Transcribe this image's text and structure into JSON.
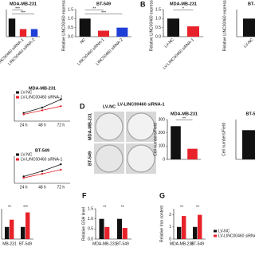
{
  "chart_data": [
    {
      "type": "bar",
      "title": "MDA-MB-231",
      "categories": [
        null,
        "LINC00460 siRNA-1",
        "LINC00460 siRNA-2"
      ],
      "values": [
        1,
        0.42,
        0.42
      ],
      "colors": [
        "#111111",
        "#e8222a",
        "#1f3fd6"
      ],
      "annotations": [
        "***",
        "***"
      ],
      "ylim": [
        0,
        1.5
      ]
    },
    {
      "type": "bar",
      "title": "BT-549",
      "ylabel": "Relative LINC00460 expression",
      "categories": [
        "NC",
        "LINC00460 siRNA-1",
        "LINC00460 siRNA-2"
      ],
      "values": [
        1,
        0.33,
        0.5
      ],
      "colors": [
        "#111111",
        "#e8222a",
        "#1f3fd6"
      ],
      "annotations": [
        "**",
        "***"
      ],
      "ylim": [
        0,
        1.5
      ],
      "yticks": [
        {
          "value": 0,
          "label": "0.0"
        },
        {
          "value": 0.5,
          "label": "0.5"
        },
        {
          "value": 1,
          "label": "1.0"
        },
        {
          "value": 1.5,
          "label": "1.5"
        }
      ]
    },
    {
      "type": "bar",
      "panel": "B",
      "title": "MDA-MB-231",
      "ylabel": "Relative LINC00460 expression",
      "categories": [
        "LV-NC",
        "LV-LINC00460 siRNA-1"
      ],
      "values": [
        1,
        0.57
      ],
      "colors": [
        "#111111",
        "#e8222a"
      ],
      "annotations": [
        "*"
      ],
      "ylim": [
        0,
        1.5
      ],
      "yticks": [
        {
          "value": 0,
          "label": "0.0"
        },
        {
          "value": 0.5,
          "label": "0.5"
        },
        {
          "value": 1,
          "label": "1.0"
        },
        {
          "value": 1.5,
          "label": "1.5"
        }
      ]
    },
    {
      "type": "bar",
      "title": "BT-5",
      "ylabel": "Relative LINC00460 expression",
      "categories": [
        "LV-NC"
      ],
      "values": [
        1
      ],
      "colors": [
        "#111111"
      ],
      "ylim": [
        0,
        1.5
      ]
    },
    {
      "type": "line",
      "title": "MDA-MB-231",
      "categories": [
        "24 h",
        "48 h",
        "72 h"
      ],
      "series": [
        {
          "name": "LV-NC",
          "color": "#111111",
          "values": [
            0.6,
            1.0,
            1.6
          ]
        },
        {
          "name": "LV-LINC00460 siRNA-1",
          "color": "#e8222a",
          "values": [
            0.5,
            0.8,
            1.1
          ]
        }
      ],
      "legend": "upper left",
      "ylim": [
        0,
        2
      ]
    },
    {
      "type": "line",
      "title": "BT-549",
      "categories": [
        "24 h",
        "48 h",
        "72 h"
      ],
      "series": [
        {
          "name": "LV-NC",
          "color": "#111111",
          "values": [
            0.5,
            0.9,
            1.4
          ]
        },
        {
          "name": "LV-LINC00460 siRNA-1",
          "color": "#e8222a",
          "values": [
            0.4,
            0.7,
            1.0
          ]
        }
      ],
      "legend": "upper left",
      "ylim": [
        0,
        2
      ]
    },
    {
      "type": "bar",
      "panel": "D",
      "title": "MDA-MB-231",
      "ylabel": "Cell numbers/Field",
      "values": [
        250,
        80
      ],
      "colors": [
        "#111111",
        "#e8222a"
      ],
      "annotations": [
        "**"
      ],
      "ylim": [
        0,
        300
      ],
      "yticks": [
        0,
        100,
        200,
        300
      ]
    },
    {
      "type": "bar",
      "title": "BT-54",
      "ylabel": "Cell numbers/Field",
      "values": [
        220
      ],
      "colors": [
        "#111111"
      ],
      "ylim": [
        0,
        300
      ]
    },
    {
      "type": "groupedbar",
      "categories": [
        "MB-231",
        "BT-549"
      ],
      "series": [
        {
          "color": "#111111",
          "values": [
            1,
            1
          ]
        },
        {
          "color": "#e8222a",
          "values": [
            1.6,
            2.2
          ]
        }
      ],
      "annotations": [
        "**",
        "***"
      ],
      "ylim": [
        0,
        2.5
      ]
    },
    {
      "type": "groupedbar",
      "panel": "F",
      "ylabel": "Relative GSH level",
      "categories": [
        "MDA-MB-231",
        "BT-549"
      ],
      "series": [
        {
          "color": "#111111",
          "values": [
            1,
            1
          ]
        },
        {
          "color": "#e8222a",
          "values": [
            0.6,
            0.55
          ]
        }
      ],
      "annotations": [
        "**",
        "**"
      ],
      "ylim": [
        0,
        1.5
      ],
      "yticks": [
        {
          "value": 0,
          "label": "0.0"
        },
        {
          "value": 0.5,
          "label": "0.5"
        },
        {
          "value": 1,
          "label": "1.0"
        },
        {
          "value": 1.5,
          "label": "1.5"
        }
      ]
    },
    {
      "type": "groupedbar",
      "panel": "G",
      "ylabel": "Relative Iron content",
      "categories": [
        "MDA-MB-231",
        "BT-549"
      ],
      "series": [
        {
          "name": "LV-NC",
          "color": "#111111",
          "values": [
            1,
            1
          ]
        },
        {
          "name": "LV-LINC00460 siRNA-1",
          "color": "#e8222a",
          "values": [
            1.9,
            2.0
          ]
        }
      ],
      "annotations": [
        "**",
        "**"
      ],
      "legend": "right",
      "ylim": [
        0,
        2.5
      ],
      "yticks": [
        0,
        1,
        2
      ]
    }
  ],
  "image_labels": {
    "columns": [
      "LV-NC",
      "LV-LINC00460 siRNA-1"
    ],
    "rows": [
      "MDA-MB-231",
      "BT-549"
    ]
  }
}
